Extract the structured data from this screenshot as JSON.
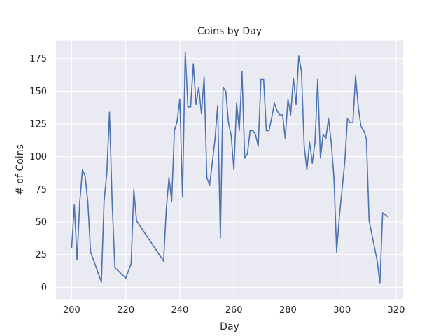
{
  "chart_data": {
    "type": "line",
    "title": "Coins by Day",
    "xlabel": "Day",
    "ylabel": "# of Coins",
    "xlim": [
      194.2,
      322.6
    ],
    "ylim": [
      -9,
      189
    ],
    "xticks": [
      200,
      220,
      240,
      260,
      280,
      300,
      320
    ],
    "yticks": [
      0,
      25,
      50,
      75,
      100,
      125,
      150,
      175
    ],
    "grid": true,
    "background": "#eaeaf2",
    "grid_color": "#ffffff",
    "series": [
      {
        "color": "#4c72b0",
        "x": [
          200,
          201,
          202,
          203,
          204,
          205,
          206,
          207,
          211,
          212,
          213,
          214,
          215,
          216,
          220,
          222,
          223,
          224,
          234,
          235,
          236,
          237,
          238,
          239,
          240,
          241,
          242,
          243,
          244,
          245,
          246,
          247,
          248,
          249,
          250,
          251,
          252,
          253,
          254,
          255,
          256,
          257,
          258,
          259,
          260,
          261,
          262,
          263,
          264,
          265,
          266,
          267,
          268,
          269,
          270,
          271,
          272,
          273,
          274,
          275,
          276,
          277,
          278,
          279,
          280,
          281,
          282,
          283,
          284,
          285,
          286,
          287,
          288,
          289,
          290,
          291,
          292,
          293,
          294,
          295,
          296,
          297,
          298,
          299,
          300,
          301,
          302,
          303,
          304,
          305,
          306,
          307,
          308,
          309,
          310,
          313,
          314,
          315,
          317
        ],
        "y": [
          30,
          63,
          21,
          65,
          90,
          85,
          65,
          27,
          4,
          66,
          87,
          134,
          64,
          15,
          7,
          18,
          75,
          51,
          20,
          60,
          84,
          66,
          120,
          127,
          144,
          69,
          180,
          138,
          138,
          171,
          140,
          153,
          133,
          161,
          84,
          78,
          95,
          113,
          139,
          38,
          153,
          150,
          126,
          116,
          90,
          141,
          120,
          165,
          99,
          102,
          120,
          120,
          117,
          108,
          159,
          159,
          120,
          120,
          130,
          141,
          135,
          132,
          132,
          114,
          144,
          132,
          160,
          140,
          177,
          165,
          108,
          90,
          111,
          95,
          111,
          159,
          99,
          117,
          114,
          129,
          111,
          84,
          27,
          54,
          75,
          96,
          129,
          126,
          126,
          162,
          138,
          123,
          120,
          114,
          51,
          20,
          3,
          57,
          54
        ]
      }
    ]
  }
}
